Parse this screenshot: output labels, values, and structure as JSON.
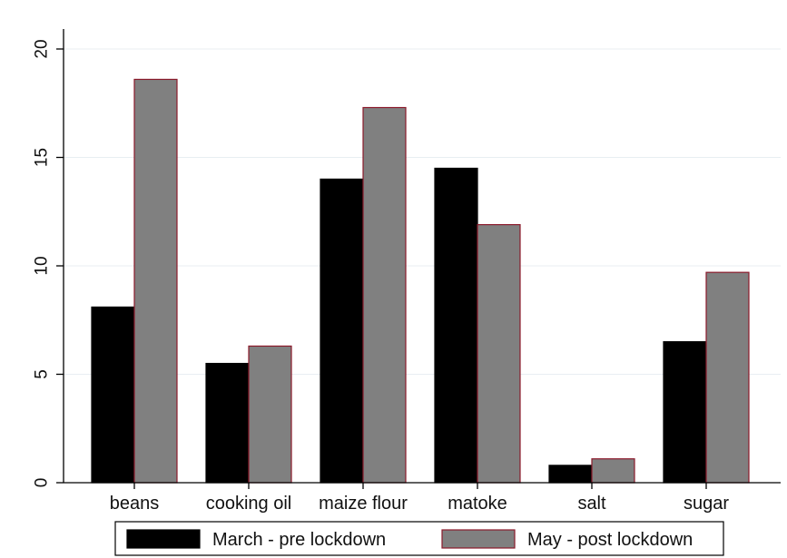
{
  "chart_data": {
    "type": "bar",
    "categories": [
      "beans",
      "cooking oil",
      "maize flour",
      "matoke",
      "salt",
      "sugar"
    ],
    "series": [
      {
        "name": "March - pre lockdown",
        "values": [
          8.1,
          5.5,
          14.0,
          14.5,
          0.8,
          6.5
        ],
        "color": "#000000",
        "edge": "#000000"
      },
      {
        "name": "May - post lockdown",
        "values": [
          18.6,
          6.3,
          17.3,
          11.9,
          1.1,
          9.7
        ],
        "color": "#808080",
        "edge": "#8b1a2b"
      }
    ],
    "yticks": [
      0,
      5,
      10,
      15,
      20
    ],
    "ylim": [
      0,
      20
    ],
    "grid": true,
    "legend_position": "bottom",
    "title": "",
    "xlabel": "",
    "ylabel": ""
  }
}
